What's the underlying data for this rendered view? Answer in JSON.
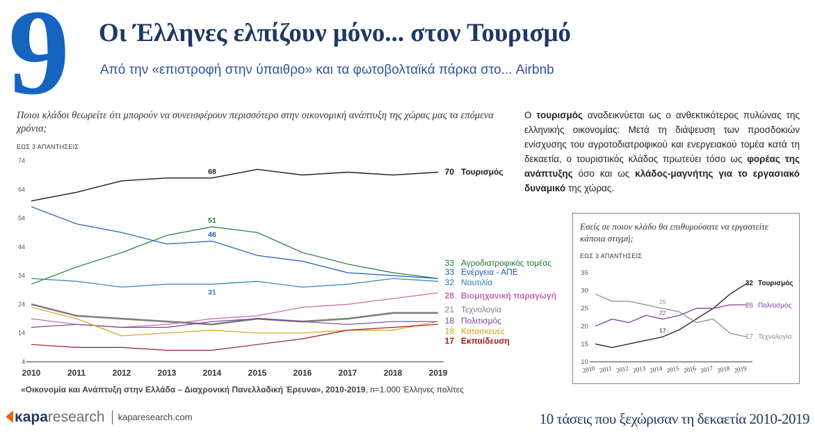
{
  "header": {
    "number": "9",
    "title": "Οι Έλληνες ελπίζουν μόνο... στον Τουρισμό",
    "subtitle": "Από την «επιστροφή στην ύπαιθρο» και τα φωτοβολταϊκά πάρκα στο... Airbnb"
  },
  "main_question": "Ποιοι κλάδοι θεωρείτε ότι μπορούν να συνεισφέρουν περισσότερο στην οικονομική ανάπτυξη της χώρας μας τα επόμενα χρόνια;",
  "main_note": "ΕΩΣ 3 ΑΠΑΝΤΗΣΕΙΣ",
  "source": {
    "bold": "«Οικονομία και Ανάπτυξη στην Ελλάδα – Διαχρονική Πανελλαδική Έρευνα», 2010-2019",
    "rest": ", n=1.000 Έλληνες πολίτες"
  },
  "paragraph": {
    "p1": "Ο ",
    "b1": "τουρισμός",
    "p2": " αναδεικνύεται ως ο ανθεκτικότερος πυλώνας της ελληνικής οικονομίας: Μετά τη διάψευση των προσδοκιών ενίσχυσης του αγροτοδιατροφικού και ενεργειακού τομέα κατά τη δεκαετία, ο τουριστικός κλάδος πρωτεύει τόσο ως ",
    "b2": "φορέας της ανάπτυξης",
    "p3": " όσο και ως ",
    "b3": "κλάδος-μαγνήτης για το εργασιακό δυναμικό",
    "p4": " της χώρας."
  },
  "inset_question": "Εσείς σε ποιον κλάδο θα επιθυμούσατε να εργαστείτε κάποια στιγμή;",
  "inset_note": "ΕΩΣ 3 ΑΠΑΝΤΗΣΕΙΣ",
  "footer": {
    "logo_kapa": "κapa",
    "logo_research": "research",
    "url": "kaparesearch.com",
    "tagline": "10 τάσεις που ξεχώρισαν τη δεκαετία 2010-2019"
  },
  "colors": {
    "accent": "#1565c0",
    "title": "#1f3763",
    "logo_orange": "#e8641b"
  },
  "chart_data": [
    {
      "type": "line",
      "x": [
        2010,
        2011,
        2012,
        2013,
        2014,
        2015,
        2016,
        2017,
        2018,
        2019
      ],
      "yticks": [
        4,
        14,
        24,
        34,
        44,
        54,
        64,
        74
      ],
      "ylim": [
        4,
        74
      ],
      "grid": false,
      "series": [
        {
          "name": "Τουρισμός",
          "color": "#1a1a1a",
          "width": 1.4,
          "end_bold": true,
          "values": [
            60,
            63,
            67,
            68,
            68,
            71,
            69,
            70,
            69,
            70
          ],
          "end_label": "70",
          "labels": [
            {
              "i": 4,
              "text": "68",
              "pos": "above"
            }
          ]
        },
        {
          "name": "Αγροδιατροφικός τομέας",
          "color": "#1e7a34",
          "width": 1.2,
          "end_bold": false,
          "values": [
            31,
            37,
            42,
            48,
            51,
            49,
            42,
            38,
            35,
            33
          ],
          "end_label": "33",
          "labels": [
            {
              "i": 4,
              "text": "51",
              "pos": "above"
            }
          ]
        },
        {
          "name": "Ενέργεια - ΑΠΕ",
          "color": "#1a56c4",
          "width": 1.2,
          "end_bold": false,
          "values": [
            58,
            52,
            49,
            45,
            46,
            41,
            39,
            35,
            34,
            33
          ],
          "end_label": "33",
          "labels": [
            {
              "i": 4,
              "text": "46",
              "pos": "above"
            }
          ]
        },
        {
          "name": "Ναυτιλία",
          "color": "#2b7ab5",
          "width": 1.2,
          "end_bold": false,
          "values": [
            33,
            32,
            30,
            31,
            31,
            32,
            30,
            31,
            33,
            32
          ],
          "end_label": "32",
          "labels": [
            {
              "i": 4,
              "text": "31",
              "pos": "below"
            }
          ]
        },
        {
          "name": "Βιομηχανική παραγωγή",
          "color": "#c866a8",
          "width": 1.2,
          "end_bold": true,
          "values": [
            19,
            17,
            16,
            17,
            19,
            20,
            23,
            24,
            26,
            28
          ],
          "end_label": "28",
          "labels": []
        },
        {
          "name": "Τεχνολογία",
          "color": "#7f7f7f",
          "width": 2.6,
          "end_bold": false,
          "values": [
            24,
            20,
            19,
            18,
            17,
            19,
            18,
            19,
            21,
            21
          ],
          "end_label": "21",
          "labels": []
        },
        {
          "name": "Πολιτισμός",
          "color": "#7a3e9d",
          "width": 1.2,
          "end_bold": false,
          "values": [
            16,
            17,
            16,
            16,
            18,
            19,
            18,
            17,
            18,
            18
          ],
          "end_label": "18",
          "labels": []
        },
        {
          "name": "Κατασκευές",
          "color": "#d4a017",
          "width": 1.2,
          "end_bold": false,
          "values": [
            23,
            19,
            13,
            14,
            15,
            14,
            14,
            15,
            15,
            18
          ],
          "end_label": "18",
          "labels": []
        },
        {
          "name": "Εκπαίδευση",
          "color": "#9e1b1b",
          "width": 1.2,
          "end_bold": true,
          "values": [
            10,
            9,
            9,
            8,
            8,
            10,
            12,
            15,
            16,
            17
          ],
          "end_label": "17",
          "labels": []
        }
      ]
    },
    {
      "type": "line",
      "x": [
        2010,
        2011,
        2012,
        2013,
        2014,
        2015,
        2016,
        2017,
        2018,
        2019
      ],
      "yticks": [
        10,
        15,
        20,
        25,
        30,
        35
      ],
      "ylim": [
        10,
        35
      ],
      "grid": false,
      "series": [
        {
          "name": "Τουρισμός",
          "color": "#1a1a1a",
          "width": 1.3,
          "end_bold": true,
          "values": [
            15,
            14,
            15,
            16,
            17,
            19,
            22,
            25,
            29,
            32
          ],
          "end_label": "32",
          "labels": [
            {
              "i": 4,
              "text": "17",
              "pos": "above"
            }
          ]
        },
        {
          "name": "Πολιτισμός",
          "color": "#7a3e9d",
          "width": 1.3,
          "end_bold": false,
          "values": [
            20,
            22,
            21,
            23,
            22,
            23,
            25,
            25,
            26,
            26
          ],
          "end_label": "26",
          "labels": [
            {
              "i": 4,
              "text": "22",
              "pos": "above"
            }
          ]
        },
        {
          "name": "Τεχνολογία",
          "color": "#8c8c8c",
          "width": 1.3,
          "end_bold": false,
          "values": [
            29,
            27,
            27,
            26,
            25,
            24,
            21,
            22,
            18,
            17
          ],
          "end_label": "17",
          "labels": [
            {
              "i": 4,
              "text": "25",
              "pos": "above"
            }
          ]
        }
      ]
    }
  ]
}
